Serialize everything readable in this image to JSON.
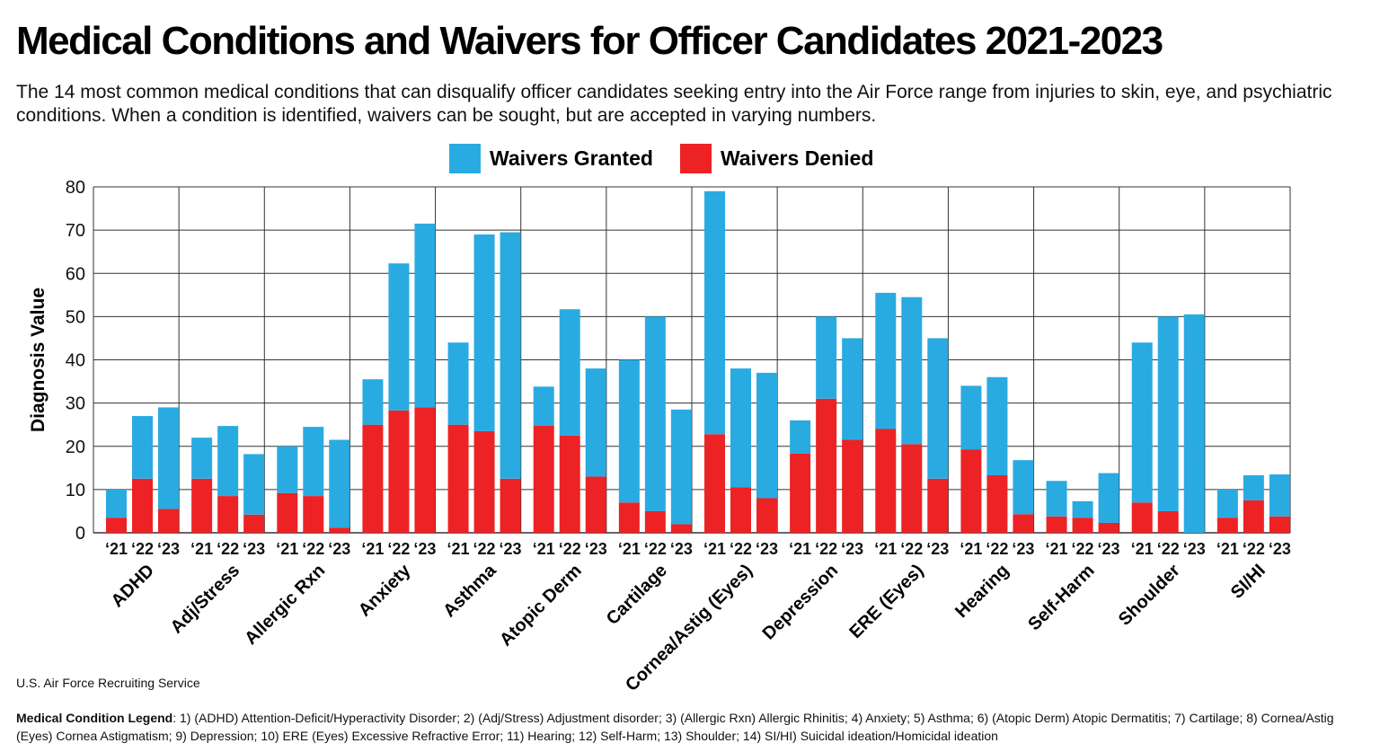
{
  "title": "Medical Conditions and Waivers for Officer Candidates 2021-2023",
  "subtitle": "The 14 most common medical conditions that can disqualify officer candidates seeking entry into the Air Force range from injuries to skin, eye, and psychiatric conditions. When a condition is identified, waivers can be sought, but are accepted in varying numbers.",
  "legend": {
    "granted": "Waivers Granted",
    "denied": "Waivers Denied"
  },
  "colors": {
    "granted": "#29abe2",
    "denied": "#ed2224",
    "grid": "#333333"
  },
  "source": "U.S. Air Force Recruiting Service",
  "footnote": {
    "label": "Medical Condition Legend",
    "text": ": 1) (ADHD) Attention-Deficit/Hyperactivity Disorder;  2) (Adj/Stress) Adjustment disorder; 3) (Allergic Rxn) Allergic Rhinitis; 4) Anxiety; 5) Asthma; 6) (Atopic Derm) Atopic Dermatitis; 7) Cartilage; 8) Cornea/Astig (Eyes) Cornea Astigmatism; 9) Depression; 10) ERE (Eyes) Excessive Refractive Error; 11) Hearing; 12) Self-Harm; 13) Shoulder; 14) SI/HI) Suicidal ideation/Homicidal ideation"
  },
  "chart_data": {
    "type": "bar",
    "stacked": true,
    "title": "Medical Conditions and Waivers for Officer Candidates 2021-2023",
    "ylabel": "Diagnosis Value",
    "xlabel": "",
    "ylim": [
      0,
      80
    ],
    "yticks": [
      0,
      10,
      20,
      30,
      40,
      50,
      60,
      70,
      80
    ],
    "grid": true,
    "legend_position": "top-center",
    "years": [
      "‘21",
      "‘22",
      "‘23"
    ],
    "categories": [
      "ADHD",
      "Adj/Stress",
      "Allergic Rxn",
      "Anxiety",
      "Asthma",
      "Atopic Derm",
      "Cartilage",
      "Cornea/Astig (Eyes)",
      "Depression",
      "ERE (Eyes)",
      "Hearing",
      "Self-Harm",
      "Shoulder",
      "SI/HI"
    ],
    "series": [
      {
        "name": "Waivers Denied",
        "values": [
          [
            3.5,
            12.5,
            5.5
          ],
          [
            12.5,
            8.5,
            4.2
          ],
          [
            9.2,
            8.5,
            1.2
          ],
          [
            25,
            28.3,
            29
          ],
          [
            25,
            23.5,
            12.5
          ],
          [
            24.8,
            22.5,
            13
          ],
          [
            7,
            5,
            2
          ],
          [
            22.8,
            10.5,
            8
          ],
          [
            18.3,
            31,
            21.5
          ],
          [
            24,
            20.5,
            12.5
          ],
          [
            19.3,
            13.3,
            4.3
          ],
          [
            3.8,
            3.5,
            2.3
          ],
          [
            7,
            5,
            0
          ],
          [
            3.5,
            7.5,
            3.8
          ]
        ]
      },
      {
        "name": "Waivers Granted",
        "values": [
          [
            6.5,
            14.5,
            23.5
          ],
          [
            9.5,
            16.2,
            14
          ],
          [
            10.8,
            16,
            20.3
          ],
          [
            10.5,
            34,
            42.5
          ],
          [
            19,
            45.5,
            57
          ],
          [
            9,
            29.2,
            25
          ],
          [
            33,
            45,
            26.5
          ],
          [
            56.2,
            27.5,
            29
          ],
          [
            7.7,
            19,
            23.5
          ],
          [
            31.5,
            34,
            32.5
          ],
          [
            14.7,
            22.7,
            12.5
          ],
          [
            8.2,
            3.8,
            11.5
          ],
          [
            37,
            45,
            50.5
          ],
          [
            6.5,
            5.8,
            9.7
          ]
        ]
      }
    ]
  }
}
